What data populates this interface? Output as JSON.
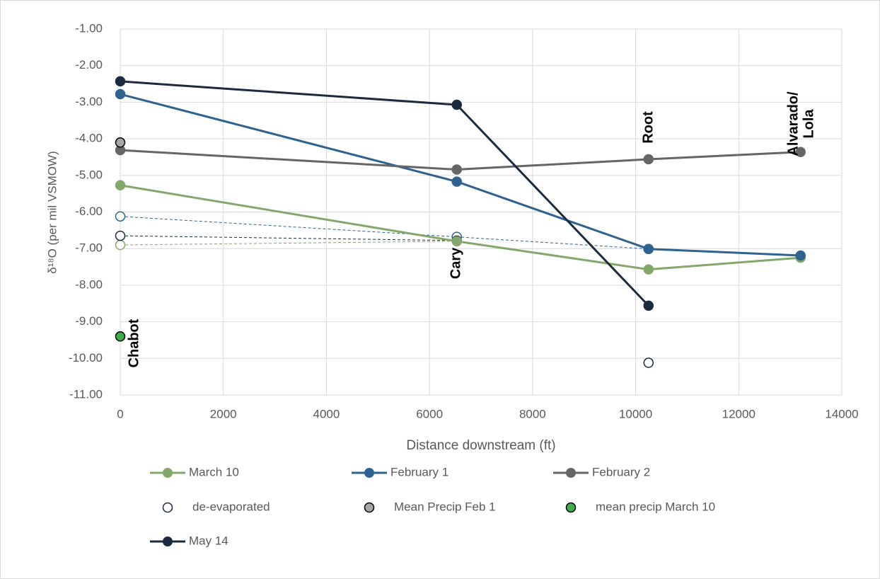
{
  "chart_data": {
    "type": "line",
    "x_label": "Distance downstream (ft)",
    "y_label": "δ¹⁸O (per mil VSMOW)",
    "xlim": [
      0,
      14000
    ],
    "xticks": [
      0,
      2000,
      4000,
      6000,
      8000,
      10000,
      12000,
      14000
    ],
    "ylim": [
      -11,
      -1
    ],
    "yticks": [
      {
        "value": -1,
        "label": "-1.00"
      },
      {
        "value": -2,
        "label": "-2.00"
      },
      {
        "value": -3,
        "label": "-3.00"
      },
      {
        "value": -4,
        "label": "-4.00"
      },
      {
        "value": -5,
        "label": "-5.00"
      },
      {
        "value": -6,
        "label": "-6.00"
      },
      {
        "value": -7,
        "label": "-7.00"
      },
      {
        "value": -8,
        "label": "-8.00"
      },
      {
        "value": -9,
        "label": "-9.00"
      },
      {
        "value": -10,
        "label": "-10.00"
      },
      {
        "value": -11,
        "label": "-11.00"
      }
    ],
    "grid": true,
    "series": [
      {
        "name": "March 10",
        "style": "line",
        "color": "#84a86c",
        "x": [
          0,
          6530,
          10250,
          13200
        ],
        "values": [
          -5.27,
          -6.8,
          -7.57,
          -7.25
        ]
      },
      {
        "name": "February 1",
        "style": "line",
        "color": "#2e6291",
        "x": [
          0,
          6530,
          10250,
          13200
        ],
        "values": [
          -2.78,
          -5.17,
          -7.01,
          -7.19
        ]
      },
      {
        "name": "February 2",
        "style": "line",
        "color": "#666666",
        "x": [
          0,
          6530,
          10250,
          13200
        ],
        "values": [
          -4.31,
          -4.84,
          -4.56,
          -4.36
        ]
      },
      {
        "name": "de-evaporated",
        "style": "open",
        "color": "#1c2a3f",
        "groups": [
          {
            "color": "#2e6291",
            "x": [
              0,
              6530,
              10250
            ],
            "values": [
              -6.12,
              -6.68,
              -7.01
            ]
          },
          {
            "color": "#84a86c",
            "x": [
              0,
              6530
            ],
            "values": [
              -6.9,
              -6.8
            ]
          },
          {
            "color": "#1c2a3f",
            "x": [
              0,
              6530
            ],
            "values": [
              -6.65,
              -6.78
            ]
          },
          {
            "color": "#1c2a3f",
            "x": [
              10250
            ],
            "values": [
              -10.12
            ]
          }
        ]
      },
      {
        "name": "Mean Precip Feb 1",
        "style": "marker",
        "color": "#a6a6a6",
        "x": [
          0
        ],
        "values": [
          -4.1
        ]
      },
      {
        "name": "mean precip March 10",
        "style": "marker",
        "color": "#3fae49",
        "x": [
          0
        ],
        "values": [
          -9.4
        ]
      },
      {
        "name": "May 14",
        "style": "line",
        "color": "#1c2a3f",
        "x": [
          0,
          6530,
          10250
        ],
        "values": [
          -2.43,
          -3.07,
          -8.56
        ]
      }
    ],
    "annotations": [
      "Chabot",
      "Cary",
      "Root",
      "Alvarado/",
      "Lola"
    ]
  }
}
